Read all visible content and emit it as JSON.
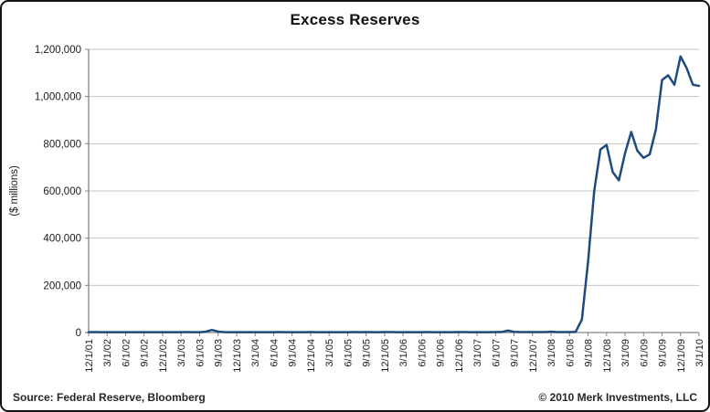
{
  "title": "Excess Reserves",
  "footer": {
    "source": "Source: Federal Reserve, Bloomberg",
    "copyright": "© 2010 Merk Investments, LLC"
  },
  "colors": {
    "line": "#1f4a7e",
    "gridline": "#c6c6c6",
    "axis": "#848484",
    "tick_label": "#1a1a1a",
    "background": "#ffffff",
    "border": "#141414"
  },
  "chart_data": {
    "type": "line",
    "title": "Excess Reserves",
    "xlabel": "",
    "ylabel": "($ millions)",
    "ylim": [
      0,
      1200000
    ],
    "ytick_interval": 200000,
    "yticks": [
      0,
      200000,
      400000,
      600000,
      800000,
      1000000,
      1200000
    ],
    "grid": "horizontal",
    "legend_position": "none",
    "xtick_labels": [
      "12/1/01",
      "3/1/02",
      "6/1/02",
      "9/1/02",
      "12/1/02",
      "3/1/03",
      "6/1/03",
      "9/1/03",
      "12/1/03",
      "3/1/04",
      "6/1/04",
      "9/1/04",
      "12/1/04",
      "3/1/05",
      "6/1/05",
      "9/1/05",
      "12/1/05",
      "3/1/06",
      "6/1/06",
      "9/1/06",
      "12/1/06",
      "3/1/07",
      "6/1/07",
      "9/1/07",
      "12/1/07",
      "3/1/08",
      "6/1/08",
      "9/1/08",
      "12/1/08",
      "3/1/09",
      "6/1/09",
      "9/1/09",
      "12/1/09",
      "3/1/10"
    ],
    "series": [
      {
        "name": "Excess Reserves",
        "x": [
          "12/1/01",
          "1/1/02",
          "2/1/02",
          "3/1/02",
          "4/1/02",
          "5/1/02",
          "6/1/02",
          "7/1/02",
          "8/1/02",
          "9/1/02",
          "10/1/02",
          "11/1/02",
          "12/1/02",
          "1/1/03",
          "2/1/03",
          "3/1/03",
          "4/1/03",
          "5/1/03",
          "6/1/03",
          "7/1/03",
          "8/1/03",
          "9/1/03",
          "10/1/03",
          "11/1/03",
          "12/1/03",
          "1/1/04",
          "2/1/04",
          "3/1/04",
          "4/1/04",
          "5/1/04",
          "6/1/04",
          "7/1/04",
          "8/1/04",
          "9/1/04",
          "10/1/04",
          "11/1/04",
          "12/1/04",
          "1/1/05",
          "2/1/05",
          "3/1/05",
          "4/1/05",
          "5/1/05",
          "6/1/05",
          "7/1/05",
          "8/1/05",
          "9/1/05",
          "10/1/05",
          "11/1/05",
          "12/1/05",
          "1/1/06",
          "2/1/06",
          "3/1/06",
          "4/1/06",
          "5/1/06",
          "6/1/06",
          "7/1/06",
          "8/1/06",
          "9/1/06",
          "10/1/06",
          "11/1/06",
          "12/1/06",
          "1/1/07",
          "2/1/07",
          "3/1/07",
          "4/1/07",
          "5/1/07",
          "6/1/07",
          "7/1/07",
          "8/1/07",
          "9/1/07",
          "10/1/07",
          "11/1/07",
          "12/1/07",
          "1/1/08",
          "2/1/08",
          "3/1/08",
          "4/1/08",
          "5/1/08",
          "6/1/08",
          "7/1/08",
          "8/1/08",
          "9/1/08",
          "10/1/08",
          "11/1/08",
          "12/1/08",
          "1/1/09",
          "2/1/09",
          "3/1/09",
          "4/1/09",
          "5/1/09",
          "6/1/09",
          "7/1/09",
          "8/1/09",
          "9/1/09",
          "10/1/09",
          "11/1/09",
          "12/1/09",
          "1/1/10",
          "2/1/10",
          "3/1/10"
        ],
        "values": [
          1600,
          1700,
          1500,
          1500,
          1500,
          1400,
          1500,
          1500,
          1400,
          1500,
          1400,
          1600,
          1500,
          1600,
          1400,
          1600,
          1800,
          1500,
          1600,
          3500,
          11000,
          4000,
          1800,
          1600,
          1600,
          1600,
          1500,
          1500,
          1600,
          1500,
          1600,
          1700,
          1600,
          1500,
          1500,
          1600,
          1700,
          1600,
          1500,
          1600,
          1600,
          1500,
          1600,
          1700,
          1600,
          1700,
          1600,
          1500,
          1700,
          1700,
          1500,
          1600,
          1600,
          1500,
          1600,
          1700,
          1500,
          1600,
          1500,
          1600,
          1700,
          1700,
          1600,
          1500,
          1600,
          1600,
          1800,
          2200,
          8500,
          3000,
          1900,
          1800,
          1800,
          1900,
          1800,
          3300,
          1900,
          1900,
          2000,
          3000,
          55000,
          300000,
          600000,
          775000,
          795000,
          680000,
          645000,
          760000,
          850000,
          770000,
          740000,
          755000,
          860000,
          1070000,
          1090000,
          1050000,
          1170000,
          1120000,
          1050000,
          1045000
        ]
      }
    ]
  }
}
